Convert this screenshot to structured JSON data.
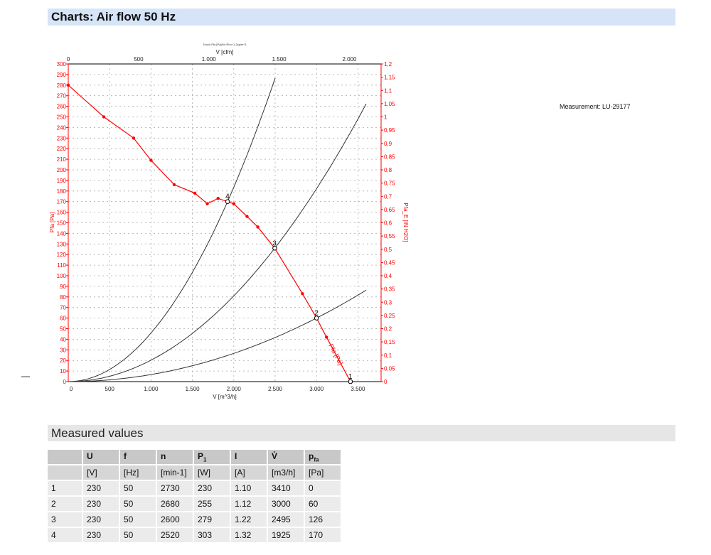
{
  "header": {
    "title": "Charts: Air flow 50 Hz"
  },
  "measurement": "Measurement: LU-29177",
  "dash": "—",
  "measured": {
    "title": "Measured values",
    "columns": [
      {
        "sym": "",
        "sub": "",
        "unit": ""
      },
      {
        "sym": "U",
        "sub": "",
        "unit": "[V]"
      },
      {
        "sym": "f",
        "sub": "",
        "unit": "[Hz]"
      },
      {
        "sym": "n",
        "sub": "",
        "unit": "[min-1]"
      },
      {
        "sym": "P",
        "sub": "1",
        "unit": "[W]"
      },
      {
        "sym": "I",
        "sub": "",
        "unit": "[A]"
      },
      {
        "sym": "V̊",
        "sub": "",
        "unit": "[m3/h]"
      },
      {
        "sym": "p",
        "sub": "fa",
        "unit": "[Pa]"
      }
    ],
    "rows": [
      [
        "1",
        "230",
        "50",
        "2730",
        "230",
        "1.10",
        "3410",
        "0"
      ],
      [
        "2",
        "230",
        "50",
        "2680",
        "255",
        "1.12",
        "3000",
        "60"
      ],
      [
        "3",
        "230",
        "50",
        "2600",
        "279",
        "1.22",
        "2495",
        "126"
      ],
      [
        "4",
        "230",
        "50",
        "2520",
        "303",
        "1.32",
        "1925",
        "170"
      ]
    ]
  },
  "chart_data": {
    "type": "line",
    "title": "Druck Pfa [Pa]/für Rho=1,2kg/m^3",
    "xlabel": "V [m^3/h]",
    "x2label": "V [cfm]",
    "ylabel": "Pfa [Pa]",
    "y2label": "Pfa_E [IN H2O]",
    "xlim": [
      0,
      3780
    ],
    "ylim": [
      0,
      300
    ],
    "x2lim": [
      0,
      2225
    ],
    "y2lim": [
      0,
      1.2
    ],
    "xticks": [
      "0",
      "500",
      "1.000",
      "1.500",
      "2.000",
      "2.500",
      "3.000",
      "3.500"
    ],
    "x2ticks": [
      "0",
      "500",
      "1.000",
      "1.500",
      "2.000"
    ],
    "y2ticks": [
      "0",
      "0,05",
      "0,1",
      "0,15",
      "0,2",
      "0,25",
      "0,3",
      "0,35",
      "0,4",
      "0,45",
      "0,5",
      "0,55",
      "0,6",
      "0,65",
      "0,7",
      "0,75",
      "0,8",
      "0,85",
      "0,9",
      "0,95",
      "1",
      "1,05",
      "1,1",
      "1,15",
      "1,2"
    ],
    "grid": true,
    "colors": {
      "fan": "#ff0000",
      "system": "#333333"
    },
    "fan_curve": {
      "label": "Pfa [Pa]",
      "points": [
        [
          0,
          280
        ],
        [
          430,
          250
        ],
        [
          790,
          230
        ],
        [
          1000,
          209
        ],
        [
          1280,
          186
        ],
        [
          1530,
          178
        ],
        [
          1680,
          168
        ],
        [
          1810,
          173
        ],
        [
          1925,
          170
        ],
        [
          2000,
          168
        ],
        [
          2160,
          156
        ],
        [
          2290,
          146
        ],
        [
          2495,
          126
        ],
        [
          2830,
          83
        ],
        [
          3000,
          60
        ],
        [
          3120,
          42
        ],
        [
          3410,
          0
        ]
      ]
    },
    "system_curves": [
      {
        "label": "4",
        "point": [
          1925,
          170
        ],
        "xmax": 2500
      },
      {
        "label": "3",
        "point": [
          2495,
          126
        ],
        "xmax": 3600
      },
      {
        "label": "2",
        "point": [
          3000,
          60
        ],
        "xmax": 3600
      }
    ],
    "operating_points": [
      {
        "label": "1",
        "x": 3410,
        "y": 0
      },
      {
        "label": "2",
        "x": 3000,
        "y": 60
      },
      {
        "label": "3",
        "x": 2495,
        "y": 126
      },
      {
        "label": "4",
        "x": 1925,
        "y": 170
      }
    ]
  }
}
